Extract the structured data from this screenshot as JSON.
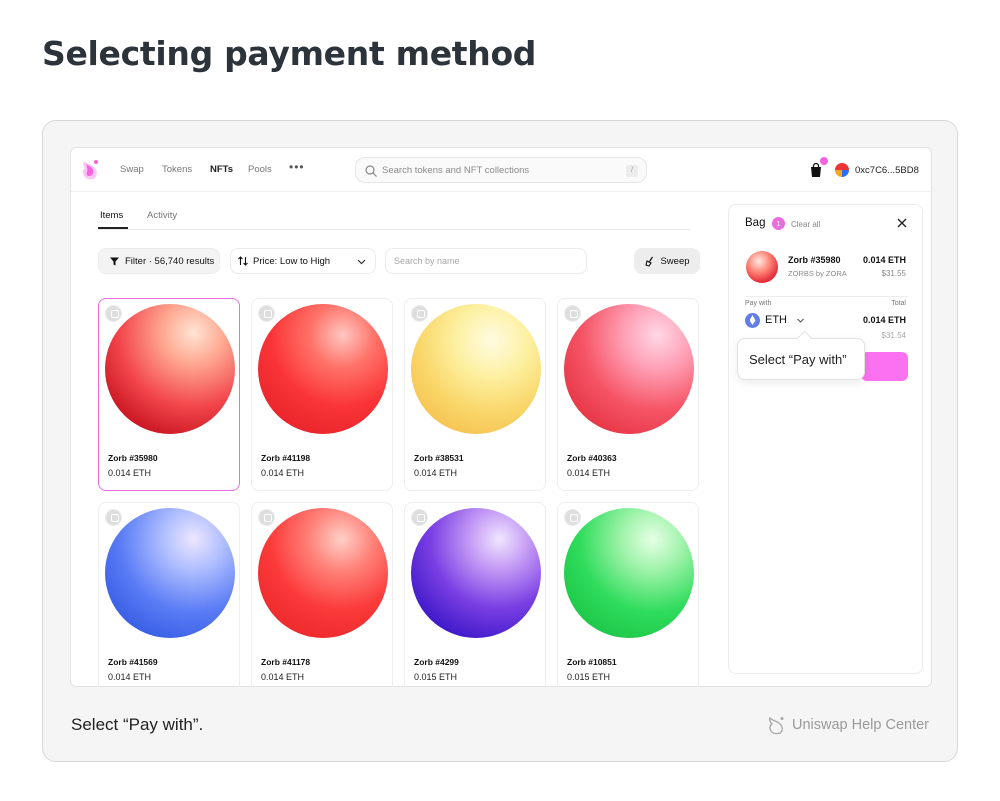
{
  "page": {
    "title": "Selecting payment method",
    "caption": "Select “Pay with”.",
    "brand": "Uniswap Help Center"
  },
  "nav": {
    "links": [
      "Swap",
      "Tokens",
      "NFTs",
      "Pools"
    ],
    "active": "NFTs",
    "more": "•••",
    "search_placeholder": "Search tokens and NFT collections",
    "search_shortcut": "/",
    "wallet_address": "0xc7C6...5BD8"
  },
  "tabs": {
    "items": "Items",
    "activity": "Activity"
  },
  "toolbar": {
    "filter_label": "Filter · 56,740 results",
    "sort_label": "Price: Low to High",
    "name_search_placeholder": "Search by name",
    "sweep_label": "Sweep"
  },
  "cards": [
    {
      "name": "Zorb #35980",
      "price": "0.014 ETH",
      "selected": true
    },
    {
      "name": "Zorb #41198",
      "price": "0.014 ETH"
    },
    {
      "name": "Zorb #38531",
      "price": "0.014 ETH"
    },
    {
      "name": "Zorb #40363",
      "price": "0.014 ETH"
    },
    {
      "name": "Zorb #41569",
      "price": "0.014 ETH"
    },
    {
      "name": "Zorb #41178",
      "price": "0.014 ETH"
    },
    {
      "name": "Zorb #4299",
      "price": "0.015 ETH"
    },
    {
      "name": "Zorb #10851",
      "price": "0.015 ETH"
    }
  ],
  "bag": {
    "title": "Bag",
    "count": "1",
    "clear_all": "Clear all",
    "item": {
      "name": "Zorb #35980",
      "collection": "ZORBS by ZORA",
      "price_eth": "0.014 ETH",
      "price_usd": "$31.55"
    },
    "pay_with_label": "Pay with",
    "total_label": "Total",
    "pay_with_value": "ETH",
    "total_eth": "0.014 ETH",
    "total_usd": "$31.54",
    "tooltip": "Select “Pay with”"
  },
  "colors": {
    "accent_pink": "#fb72f0",
    "selected_border": "#ef6be2",
    "eth_blue": "#627eea"
  }
}
